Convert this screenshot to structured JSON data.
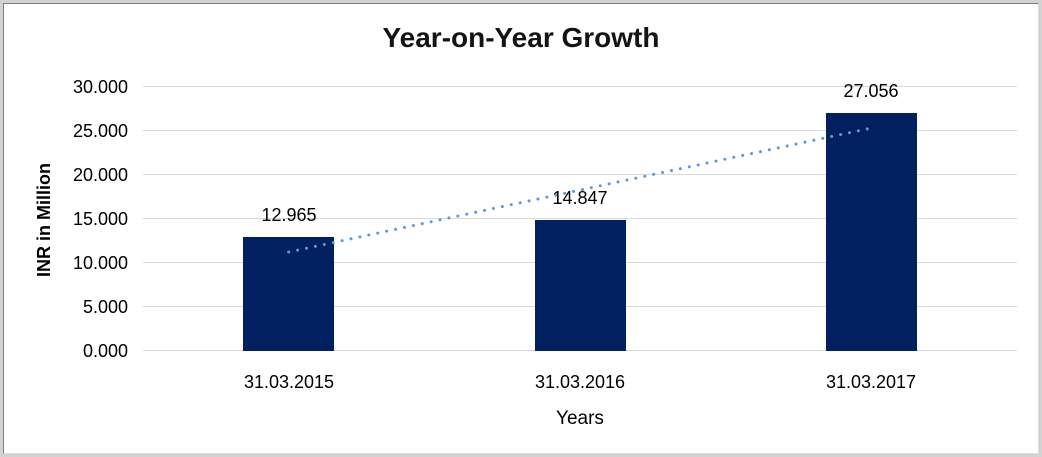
{
  "chart_data": {
    "type": "bar",
    "title": "Year-on-Year Growth",
    "xlabel": "Years",
    "ylabel": "INR in Million",
    "categories": [
      "31.03.2015",
      "31.03.2016",
      "31.03.2017"
    ],
    "values": [
      12.965,
      14.847,
      27.056
    ],
    "data_labels": [
      "12.965",
      "14.847",
      "27.056"
    ],
    "y_ticks": [
      0,
      5,
      10,
      15,
      20,
      25,
      30
    ],
    "y_tick_labels": [
      "0.000",
      "5.000",
      "10.000",
      "15.000",
      "20.000",
      "25.000",
      "30.000"
    ],
    "ylim": [
      0,
      30
    ],
    "grid": true,
    "legend": "none",
    "colors": {
      "bar": "#002060",
      "trendline": "#5B9BD5",
      "gridline": "#D9D9D9",
      "text": "#000000",
      "title": "#141414"
    },
    "trendline": {
      "type": "linear",
      "style": "dotted"
    }
  }
}
